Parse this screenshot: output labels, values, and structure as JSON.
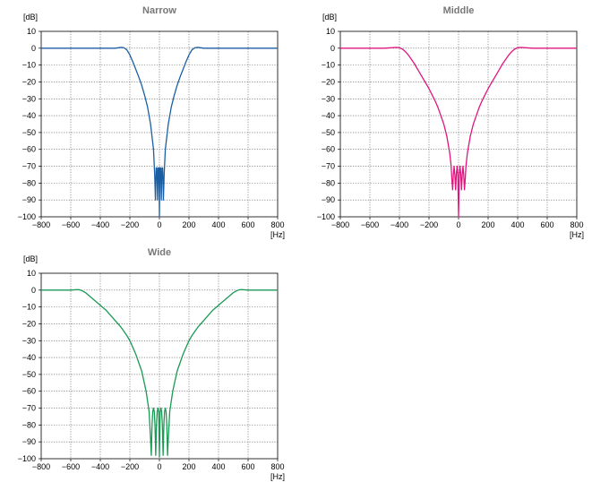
{
  "chart_data": [
    {
      "type": "line",
      "title": "Narrow",
      "ylabel": "[dB]",
      "xlabel": "[Hz]",
      "xlim": [
        -800,
        800
      ],
      "ylim": [
        -100,
        10
      ],
      "xticks": [
        -800,
        -600,
        -400,
        -200,
        0,
        200,
        400,
        600,
        800
      ],
      "xtick_labels": [
        "−800",
        "−600",
        "−400",
        "−200",
        "0",
        "200",
        "400",
        "600",
        "800"
      ],
      "yticks": [
        10,
        0,
        -10,
        -20,
        -30,
        -40,
        -50,
        -60,
        -70,
        -80,
        -90,
        -100
      ],
      "ytick_labels": [
        "10",
        "0",
        "−10",
        "−20",
        "−30",
        "−40",
        "−50",
        "−60",
        "−70",
        "−80",
        "−90",
        "−100"
      ],
      "grid": true,
      "color": "#1a5fa3",
      "series": [
        {
          "x": [
            -800,
            -600,
            -400,
            -300,
            -260,
            -240,
            -220,
            -200,
            -180,
            -160,
            -140,
            -120,
            -100,
            -80,
            -60,
            -40,
            -32,
            -27,
            -22,
            -17,
            -13,
            -8,
            -3,
            0,
            3,
            8,
            13,
            17,
            22,
            27,
            32,
            40,
            60,
            80,
            100,
            120,
            140,
            160,
            180,
            200,
            220,
            240,
            260,
            300,
            400,
            600,
            800
          ],
          "y": [
            0,
            0,
            0,
            0,
            0.5,
            0.3,
            -1,
            -4,
            -8,
            -12.5,
            -17,
            -22,
            -28,
            -35,
            -45,
            -60,
            -75,
            -90,
            -71,
            -71,
            -90,
            -71,
            -71,
            -100,
            -71,
            -71,
            -90,
            -71,
            -71,
            -90,
            -75,
            -60,
            -45,
            -35,
            -28,
            -22,
            -17,
            -12.5,
            -8,
            -4,
            -1,
            0.3,
            0.5,
            0,
            0,
            0,
            0
          ]
        }
      ]
    },
    {
      "type": "line",
      "title": "Middle",
      "ylabel": "[dB]",
      "xlabel": "[Hz]",
      "xlim": [
        -800,
        800
      ],
      "ylim": [
        -100,
        10
      ],
      "xticks": [
        -800,
        -600,
        -400,
        -200,
        0,
        200,
        400,
        600,
        800
      ],
      "xtick_labels": [
        "−800",
        "−600",
        "−400",
        "−200",
        "0",
        "200",
        "400",
        "600",
        "800"
      ],
      "yticks": [
        10,
        0,
        -10,
        -20,
        -30,
        -40,
        -50,
        -60,
        -70,
        -80,
        -90,
        -100
      ],
      "ytick_labels": [
        "10",
        "0",
        "−10",
        "−20",
        "−30",
        "−40",
        "−50",
        "−60",
        "−70",
        "−80",
        "−90",
        "−100"
      ],
      "grid": true,
      "color": "#e0157f",
      "series": [
        {
          "x": [
            -800,
            -600,
            -500,
            -420,
            -400,
            -380,
            -360,
            -340,
            -320,
            -300,
            -280,
            -260,
            -240,
            -220,
            -200,
            -180,
            -160,
            -140,
            -120,
            -100,
            -80,
            -60,
            -50,
            -45,
            -40,
            -35,
            -30,
            -25,
            -20,
            -15,
            -10,
            -5,
            0,
            5,
            10,
            15,
            20,
            25,
            30,
            35,
            40,
            45,
            50,
            60,
            80,
            100,
            120,
            140,
            160,
            180,
            200,
            220,
            240,
            260,
            280,
            300,
            320,
            340,
            360,
            380,
            400,
            420,
            500,
            600,
            800
          ],
          "y": [
            0,
            0,
            0,
            0.5,
            0.3,
            -0.5,
            -2,
            -4,
            -6.5,
            -9,
            -12,
            -15,
            -18,
            -21,
            -24,
            -27.5,
            -31,
            -35,
            -40,
            -45,
            -52,
            -62,
            -70,
            -78,
            -84,
            -75,
            -70,
            -75,
            -84,
            -75,
            -70,
            -75,
            -100,
            -75,
            -70,
            -75,
            -84,
            -75,
            -70,
            -75,
            -84,
            -78,
            -70,
            -62,
            -52,
            -45,
            -40,
            -35,
            -31,
            -27.5,
            -24,
            -21,
            -18,
            -15,
            -12,
            -9,
            -6.5,
            -4,
            -2,
            -0.5,
            0.3,
            0.5,
            0,
            0,
            0
          ]
        }
      ]
    },
    {
      "type": "line",
      "title": "Wide",
      "ylabel": "[dB]",
      "xlabel": "[Hz]",
      "xlim": [
        -800,
        800
      ],
      "ylim": [
        -100,
        10
      ],
      "xticks": [
        -800,
        -600,
        -400,
        -200,
        0,
        200,
        400,
        600,
        800
      ],
      "xtick_labels": [
        "−800",
        "−600",
        "−400",
        "−200",
        "0",
        "200",
        "400",
        "600",
        "800"
      ],
      "yticks": [
        10,
        0,
        -10,
        -20,
        -30,
        -40,
        -50,
        -60,
        -70,
        -80,
        -90,
        -100
      ],
      "ytick_labels": [
        "10",
        "0",
        "−10",
        "−20",
        "−30",
        "−40",
        "−50",
        "−60",
        "−70",
        "−80",
        "−90",
        "−100"
      ],
      "grid": true,
      "color": "#1a9a55",
      "series": [
        {
          "x": [
            -800,
            -600,
            -560,
            -540,
            -520,
            -500,
            -480,
            -460,
            -440,
            -420,
            -400,
            -380,
            -360,
            -340,
            -320,
            -300,
            -280,
            -260,
            -240,
            -220,
            -200,
            -180,
            -160,
            -140,
            -120,
            -100,
            -90,
            -80,
            -70,
            -65,
            -60,
            -55,
            -50,
            -45,
            -40,
            -35,
            -30,
            -25,
            -20,
            -15,
            -10,
            -5,
            0,
            5,
            10,
            15,
            20,
            25,
            30,
            35,
            40,
            45,
            50,
            55,
            60,
            65,
            70,
            80,
            90,
            100,
            120,
            140,
            160,
            180,
            200,
            220,
            240,
            260,
            280,
            300,
            320,
            340,
            360,
            380,
            400,
            420,
            440,
            460,
            480,
            500,
            520,
            540,
            560,
            600,
            800
          ],
          "y": [
            0,
            0,
            0.3,
            0.2,
            -0.5,
            -1.5,
            -3,
            -4.5,
            -6,
            -7.5,
            -9,
            -10.5,
            -12,
            -14,
            -16,
            -18,
            -20,
            -22,
            -24.5,
            -27,
            -30,
            -34,
            -38,
            -43,
            -48,
            -56,
            -60,
            -66,
            -72,
            -80,
            -88,
            -98,
            -80,
            -72,
            -70,
            -72,
            -80,
            -98,
            -80,
            -72,
            -70,
            -72,
            -99,
            -72,
            -70,
            -72,
            -80,
            -98,
            -80,
            -72,
            -70,
            -72,
            -80,
            -98,
            -88,
            -80,
            -72,
            -66,
            -60,
            -56,
            -48,
            -43,
            -38,
            -34,
            -30,
            -27,
            -24.5,
            -22,
            -20,
            -18,
            -16,
            -14,
            -12,
            -10.5,
            -9,
            -7.5,
            -6,
            -4.5,
            -3,
            -1.5,
            -0.5,
            0.2,
            0.3,
            0,
            0
          ]
        }
      ]
    }
  ]
}
